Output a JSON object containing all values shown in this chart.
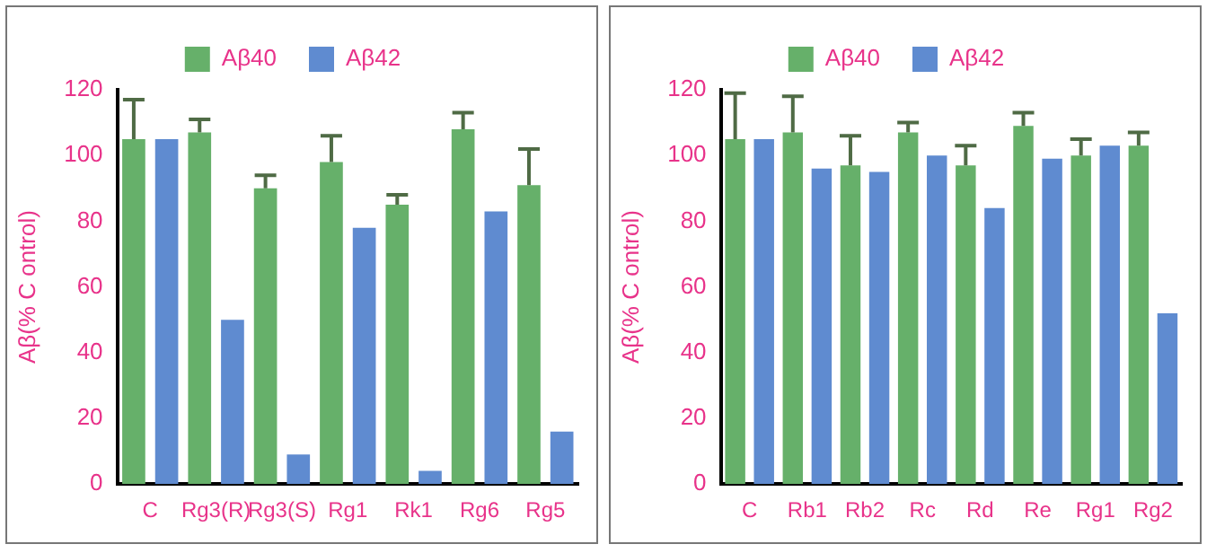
{
  "chart_data": [
    {
      "type": "bar",
      "ylabel": "Aβ(% C ontrol)",
      "categories": [
        "C",
        "Rg3(R)",
        "Rg3(S)",
        "Rg1",
        "Rk1",
        "Rg6",
        "Rg5"
      ],
      "ylim": [
        0,
        120
      ],
      "yticks": [
        0,
        20,
        40,
        60,
        80,
        100,
        120
      ],
      "grid": false,
      "legend": "top",
      "series": [
        {
          "name": "Aβ40",
          "color": "#66b06a",
          "values": [
            105,
            107,
            90,
            98,
            85,
            108,
            91
          ],
          "errors": [
            [
              105,
              117
            ],
            [
              107,
              111
            ],
            [
              90,
              94
            ],
            [
              98,
              106
            ],
            [
              85,
              88
            ],
            [
              108,
              113
            ],
            [
              91,
              102
            ]
          ]
        },
        {
          "name": "Aβ42",
          "color": "#5f8bd0",
          "values": [
            105,
            50,
            9,
            78,
            4,
            83,
            16
          ]
        }
      ]
    },
    {
      "type": "bar",
      "ylabel": "Aβ(% C ontrol)",
      "categories": [
        "C",
        "Rb1",
        "Rb2",
        "Rc",
        "Rd",
        "Re",
        "Rg1",
        "Rg2"
      ],
      "ylim": [
        0,
        120
      ],
      "yticks": [
        0,
        20,
        40,
        60,
        80,
        100,
        120
      ],
      "grid": false,
      "legend": "top",
      "series": [
        {
          "name": "Aβ40",
          "color": "#66b06a",
          "values": [
            105,
            107,
            97,
            107,
            97,
            109,
            100,
            103
          ],
          "errors": [
            [
              105,
              119
            ],
            [
              107,
              118
            ],
            [
              97,
              106
            ],
            [
              107,
              110
            ],
            [
              97,
              103
            ],
            [
              109,
              113
            ],
            [
              100,
              105
            ],
            [
              103,
              107
            ]
          ]
        },
        {
          "name": "Aβ42",
          "color": "#5f8bd0",
          "values": [
            105,
            96,
            95,
            100,
            84,
            99,
            103,
            52
          ]
        }
      ]
    }
  ]
}
